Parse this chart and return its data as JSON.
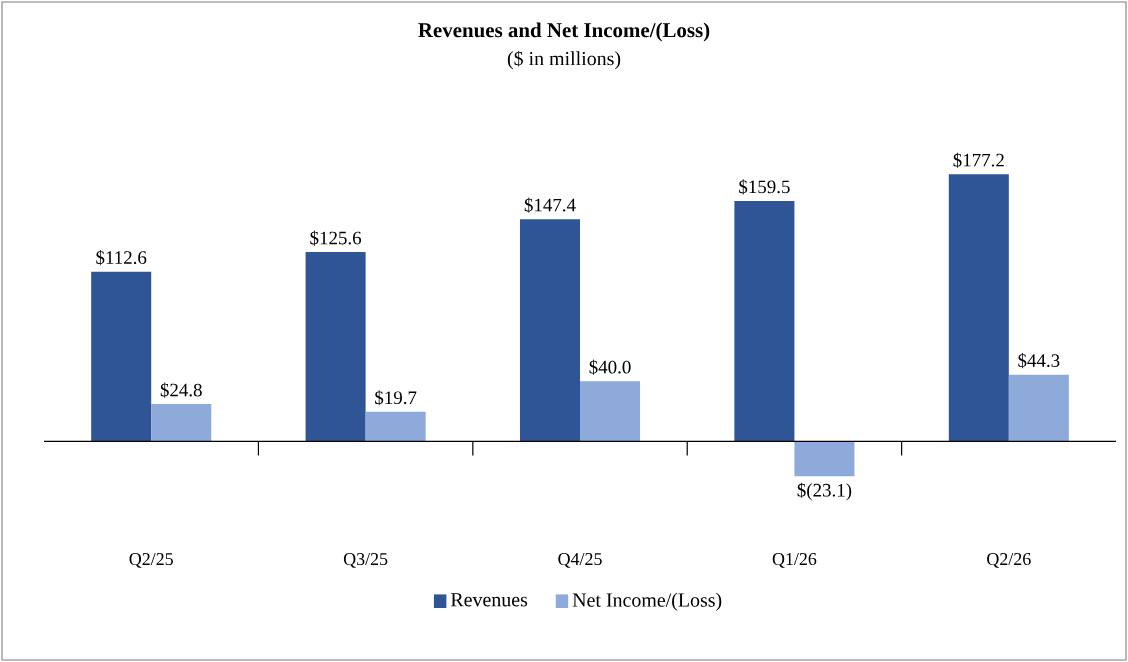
{
  "chart_data": {
    "type": "bar",
    "title": "Revenues and Net Income/(Loss)",
    "subtitle": "($ in millions)",
    "categories": [
      "Q2/25",
      "Q3/25",
      "Q4/25",
      "Q1/26",
      "Q2/26"
    ],
    "series": [
      {
        "name": "Revenues",
        "color": "#2f5597",
        "values": [
          112.6,
          125.6,
          147.4,
          159.5,
          177.2
        ],
        "value_labels": [
          "$112.6",
          "$125.6",
          "$147.4",
          "$159.5",
          "$177.2"
        ]
      },
      {
        "name": "Net Income/(Loss)",
        "color": "#8eaadb",
        "values": [
          24.8,
          19.7,
          40.0,
          -23.1,
          44.3
        ],
        "value_labels": [
          "$24.8",
          "$19.7",
          "$40.0",
          "$(23.1)",
          "$44.3"
        ]
      }
    ],
    "legend": "bottom"
  }
}
